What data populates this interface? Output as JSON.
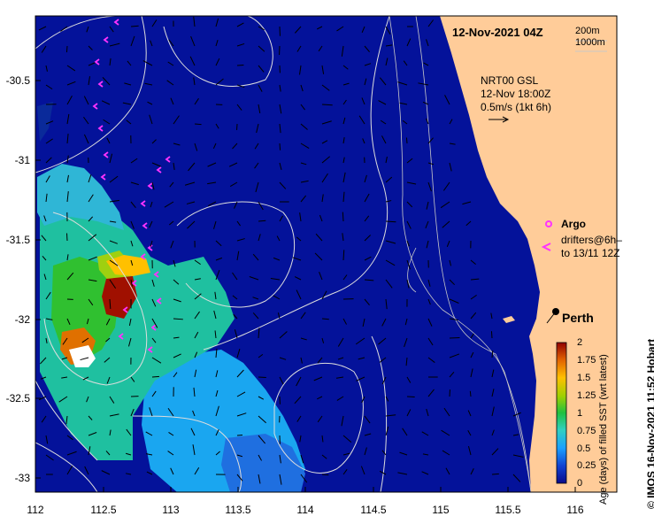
{
  "map": {
    "date_label": "12-Nov-2021 04Z",
    "isobath_labels": [
      "200m",
      "1000m"
    ],
    "current_info": [
      "NRT00 GSL",
      "12-Nov 18:00Z",
      "0.5m/s (1kt 6h)"
    ],
    "argo_label": "Argo",
    "drifters_label": [
      "drifters@6h–",
      "to 13/11 12Z"
    ],
    "city_label": "Perth",
    "credit": "© IMOS 16-Nov-2021 11:52 Hobart",
    "y_ticks": [
      "-30.5",
      "-31",
      "-31.5",
      "-32",
      "-32.5",
      "-33"
    ],
    "x_ticks": [
      "112",
      "112.5",
      "113",
      "113.5",
      "114",
      "114.5",
      "115",
      "115.5",
      "116"
    ],
    "colorbar": {
      "label": "Age (days) of filled SST (wrt latest)",
      "ticks": [
        "2",
        "1.75",
        "1.5",
        "1.25",
        "1",
        "0.75",
        "0.5",
        "0.25",
        "0"
      ]
    },
    "colors": {
      "ocean": "#04129a",
      "land": "#ffcc99",
      "drifter": "#ff33ff"
    }
  }
}
